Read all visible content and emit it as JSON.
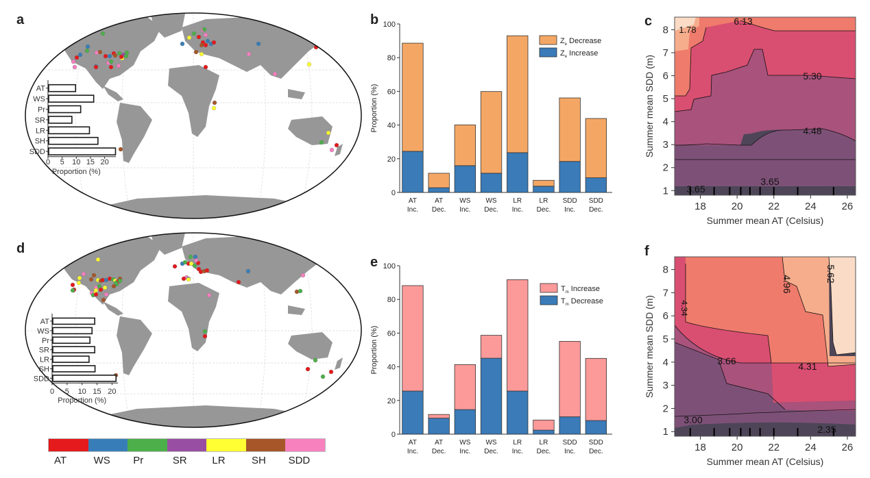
{
  "panels": {
    "a": "a",
    "b": "b",
    "c": "c",
    "d": "d",
    "e": "e",
    "f": "f"
  },
  "color_legend": {
    "items": [
      {
        "label": "AT",
        "color": "#e41a1c"
      },
      {
        "label": "WS",
        "color": "#377eb8"
      },
      {
        "label": "Pr",
        "color": "#4daf4a"
      },
      {
        "label": "SR",
        "color": "#984ea3"
      },
      {
        "label": "LR",
        "color": "#ffff33"
      },
      {
        "label": "SH",
        "color": "#a65628"
      },
      {
        "label": "SDD",
        "color": "#f781bf"
      }
    ]
  },
  "chart_data": [
    {
      "id": "a",
      "type": "bar",
      "orientation": "horizontal",
      "title": "",
      "background": "world map with lake sites colored by dominant driver",
      "categories": [
        "AT",
        "WS",
        "Pr",
        "SR",
        "LR",
        "SH",
        "SDD"
      ],
      "values": [
        9.5,
        15.9,
        11.3,
        8.2,
        14.4,
        17.4,
        23.6
      ],
      "xlabel": "Proportion (%)",
      "xticks": [
        "0",
        "5",
        "10",
        "15",
        "20"
      ],
      "xlim": [
        0,
        24
      ]
    },
    {
      "id": "b",
      "type": "bar",
      "stacked": true,
      "categories": [
        "AT Inc.",
        "AT Dec.",
        "WS Inc.",
        "WS Dec.",
        "LR Inc.",
        "LR Dec.",
        "SDD Inc.",
        "SDD Dec."
      ],
      "category_lines": [
        [
          "AT",
          "Inc."
        ],
        [
          "AT",
          "Dec."
        ],
        [
          "WS",
          "Inc."
        ],
        [
          "WS",
          "Dec."
        ],
        [
          "LR",
          "Inc."
        ],
        [
          "LR",
          "Dec."
        ],
        [
          "SDD",
          "Inc."
        ],
        [
          "SDD",
          "Dec."
        ]
      ],
      "series": [
        {
          "name": "Z_e Increase",
          "label_main": "Z",
          "label_sub": "e",
          "label_rest": " Increase",
          "color": "#3a7bb8",
          "values": [
            24.4,
            2.8,
            15.9,
            11.4,
            23.6,
            3.7,
            18.4,
            8.7
          ]
        },
        {
          "name": "Z_e Decrease",
          "label_main": "Z",
          "label_sub": "e",
          "label_rest": " Decrease",
          "color": "#f4a765",
          "values": [
            64.2,
            8.6,
            24.2,
            48.5,
            69.4,
            3.5,
            37.7,
            35.2
          ]
        }
      ],
      "totals": [
        88.6,
        11.4,
        40.1,
        59.9,
        93.0,
        7.2,
        56.1,
        43.9
      ],
      "ylabel": "Proportion (%)",
      "yticks": [
        "0",
        "20",
        "40",
        "60",
        "80",
        "100"
      ],
      "ylim": [
        0,
        100
      ],
      "legend": "top-right"
    },
    {
      "id": "c",
      "type": "heatmap",
      "subtype": "filled-contour",
      "xlabel": "Summer mean AT (Celsius)",
      "ylabel": "Summer mean SDD (m)",
      "xticks": [
        "18",
        "20",
        "22",
        "24",
        "26"
      ],
      "yticks": [
        "1",
        "2",
        "3",
        "4",
        "5",
        "6",
        "7",
        "8"
      ],
      "xlim": [
        16.6,
        26.45
      ],
      "ylim": [
        0.8,
        8.55
      ],
      "contour_labels": [
        "1.78",
        "6.13",
        "5.30",
        "4.48",
        "3.65",
        "3.65"
      ],
      "levels": [
        3.65,
        4.48,
        5.3,
        6.13,
        6.96
      ],
      "level_colors": [
        "#4e4558",
        "#7d5177",
        "#a8527c",
        "#d94f71",
        "#ef7b6c",
        "#f6ad8c",
        "#f9dbc6"
      ],
      "rug_x": [
        17.45,
        18.75,
        19.6,
        20.2,
        20.7,
        21.25,
        22.0,
        23.3,
        25.25
      ]
    },
    {
      "id": "d",
      "type": "bar",
      "orientation": "horizontal",
      "background": "world map with lake sites colored by dominant driver",
      "categories": [
        "AT",
        "WS",
        "Pr",
        "SR",
        "LR",
        "SH",
        "SDD"
      ],
      "values": [
        14.0,
        13.1,
        12.4,
        14.0,
        12.1,
        14.1,
        21.1
      ],
      "xlabel": "Proportion (%)",
      "xticks": [
        "0",
        "5",
        "10",
        "15",
        "20"
      ],
      "xlim": [
        0,
        22
      ]
    },
    {
      "id": "e",
      "type": "bar",
      "stacked": true,
      "categories": [
        "AT Inc.",
        "AT Dec.",
        "WS Inc.",
        "WS Dec.",
        "LR Inc.",
        "LR Dec.",
        "SDD Inc.",
        "SDD Dec."
      ],
      "category_lines": [
        [
          "AT",
          "Inc."
        ],
        [
          "AT",
          "Dec."
        ],
        [
          "WS",
          "Inc."
        ],
        [
          "WS",
          "Dec."
        ],
        [
          "LR",
          "Inc."
        ],
        [
          "LR",
          "Dec."
        ],
        [
          "SDD",
          "Inc."
        ],
        [
          "SDD",
          "Dec."
        ]
      ],
      "series": [
        {
          "name": "T_m Decrease",
          "label_main": "T",
          "label_sub": "m",
          "label_rest": " Decrease",
          "color": "#3a7bb8",
          "values": [
            25.6,
            9.5,
            14.6,
            45.1,
            25.6,
            2.4,
            10.3,
            8.1
          ]
        },
        {
          "name": "T_m Increase",
          "label_main": "T",
          "label_sub": "m",
          "label_rest": " Increase",
          "color": "#fb9a99",
          "values": [
            62.6,
            2.2,
            26.7,
            13.6,
            66.1,
            6.0,
            44.8,
            36.9
          ]
        }
      ],
      "totals": [
        88.2,
        11.7,
        41.3,
        58.7,
        91.7,
        8.4,
        55.1,
        45.0
      ],
      "ylabel": "Proportion (%)",
      "yticks": [
        "0",
        "20",
        "40",
        "60",
        "80",
        "100"
      ],
      "ylim": [
        0,
        100
      ],
      "legend": "top-right"
    },
    {
      "id": "f",
      "type": "heatmap",
      "subtype": "filled-contour",
      "xlabel": "Summer mean AT (Celsius)",
      "ylabel": "Summer mean SDD (m)",
      "xticks": [
        "18",
        "20",
        "22",
        "24",
        "26"
      ],
      "yticks": [
        "1",
        "2",
        "3",
        "4",
        "5",
        "6",
        "7",
        "8"
      ],
      "xlim": [
        16.6,
        26.45
      ],
      "ylim": [
        0.8,
        8.55
      ],
      "contour_labels": [
        "4.34",
        "4.96",
        "5.62",
        "3.66",
        "4.31",
        "3.00",
        "2.35"
      ],
      "levels": [
        2.35,
        3.0,
        3.66,
        4.31,
        4.96,
        5.62
      ],
      "level_colors": [
        "#4e4558",
        "#7d5177",
        "#a8527c",
        "#d94f71",
        "#ef7b6c",
        "#f6ad8c",
        "#f9dbc6"
      ],
      "rug_x": [
        17.45,
        18.75,
        19.6,
        20.2,
        20.7,
        21.25,
        22.0,
        23.3,
        25.25
      ]
    }
  ]
}
